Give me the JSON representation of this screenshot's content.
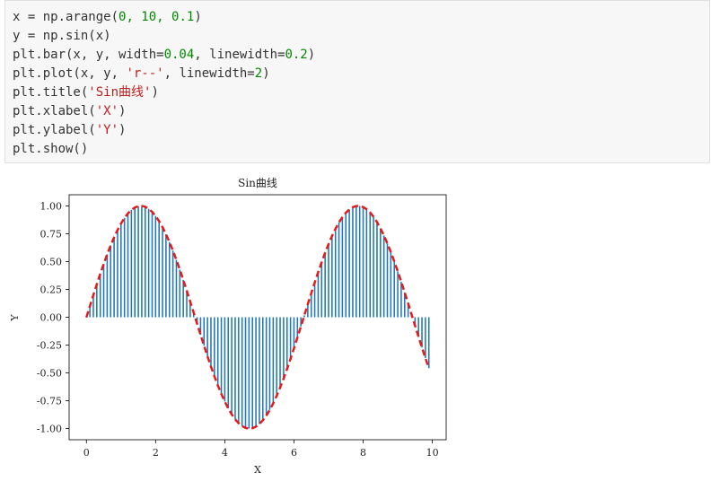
{
  "code_cell": {
    "lines": [
      [
        {
          "t": "x = np.arange(",
          "c": ""
        },
        {
          "t": "0, 10, 0.1",
          "c": "num"
        },
        {
          "t": ")",
          "c": ""
        }
      ],
      [
        {
          "t": "y = np.sin(x)",
          "c": ""
        }
      ],
      [
        {
          "t": "plt.bar(x, y, width=",
          "c": ""
        },
        {
          "t": "0.04",
          "c": "num"
        },
        {
          "t": ", linewidth=",
          "c": ""
        },
        {
          "t": "0.2",
          "c": "num"
        },
        {
          "t": ")",
          "c": ""
        }
      ],
      [
        {
          "t": "plt.plot(x, y, ",
          "c": ""
        },
        {
          "t": "'r--'",
          "c": "str"
        },
        {
          "t": ", linewidth=",
          "c": ""
        },
        {
          "t": "2",
          "c": "num"
        },
        {
          "t": ")",
          "c": ""
        }
      ],
      [
        {
          "t": "plt.title(",
          "c": ""
        },
        {
          "t": "'Sin曲线'",
          "c": "str"
        },
        {
          "t": ")",
          "c": ""
        }
      ],
      [
        {
          "t": "plt.xlabel(",
          "c": ""
        },
        {
          "t": "'X'",
          "c": "str"
        },
        {
          "t": ")",
          "c": ""
        }
      ],
      [
        {
          "t": "plt.ylabel(",
          "c": ""
        },
        {
          "t": "'Y'",
          "c": "str"
        },
        {
          "t": ")",
          "c": ""
        }
      ],
      [
        {
          "t": "plt.show()",
          "c": ""
        }
      ]
    ]
  },
  "colors": {
    "bar": "#1f77b4",
    "line": "#e41a1c",
    "code_bg": "#f7f7f7",
    "string": "#ba2121",
    "number": "#008800"
  },
  "chart_data": {
    "type": "bar",
    "title": "Sin曲线",
    "xlabel": "X",
    "ylabel": "Y",
    "x_start": 0,
    "x_stop": 10,
    "x_step": 0.1,
    "function": "sin",
    "xlim": [
      -0.5,
      10.4
    ],
    "ylim": [
      -1.1,
      1.1
    ],
    "xticks": [
      0,
      2,
      4,
      6,
      8,
      10
    ],
    "xtick_labels": [
      "0",
      "2",
      "4",
      "6",
      "8",
      "10"
    ],
    "yticks": [
      1.0,
      0.75,
      0.5,
      0.25,
      0.0,
      -0.25,
      -0.5,
      -0.75,
      -1.0
    ],
    "ytick_labels": [
      "1.00",
      "0.75",
      "0.50",
      "0.25",
      "0.00",
      "-0.25",
      "-0.50",
      "-0.75",
      "-1.00"
    ],
    "series": [
      {
        "type": "bar",
        "width": 0.04
      },
      {
        "type": "line",
        "style": "dashed"
      }
    ],
    "grid": false
  }
}
